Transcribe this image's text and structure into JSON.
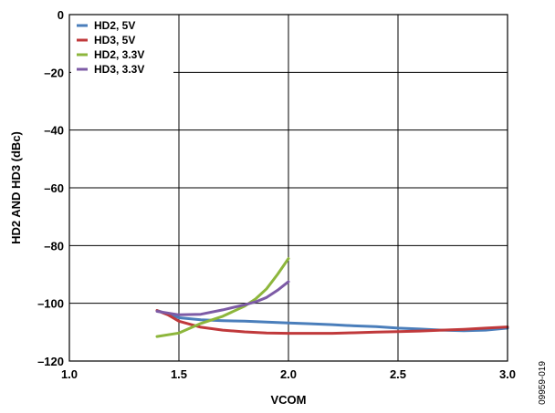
{
  "chart_data": {
    "type": "line",
    "xlabel": "VCOM",
    "ylabel": "HD2 AND HD3 (dBc)",
    "xlim": [
      1.0,
      3.0
    ],
    "ylim": [
      -120,
      0
    ],
    "xticks": [
      1.0,
      1.5,
      2.0,
      2.5,
      3.0
    ],
    "xtick_labels": [
      "1.0",
      "1.5",
      "2.0",
      "2.5",
      "3.0"
    ],
    "yticks": [
      0,
      -20,
      -40,
      -60,
      -80,
      -100,
      -120
    ],
    "ytick_labels": [
      "0",
      "–20",
      "–40",
      "–60",
      "–80",
      "–100",
      "–120"
    ],
    "grid": true,
    "legend_position": "top-left",
    "figure_id": "09959-019",
    "series": [
      {
        "name": "HD2, 5V",
        "color": "#4a7ebb",
        "x": [
          1.4,
          1.5,
          1.6,
          1.7,
          1.8,
          1.9,
          2.0,
          2.1,
          2.2,
          2.3,
          2.4,
          2.5,
          2.6,
          2.7,
          2.8,
          2.9,
          3.0
        ],
        "y": [
          -102.5,
          -105.0,
          -105.7,
          -106.0,
          -106.2,
          -106.5,
          -106.8,
          -107.1,
          -107.4,
          -107.8,
          -108.1,
          -108.6,
          -108.9,
          -109.3,
          -109.5,
          -109.3,
          -108.6
        ]
      },
      {
        "name": "HD3, 5V",
        "color": "#c0393b",
        "x": [
          1.4,
          1.45,
          1.5,
          1.6,
          1.7,
          1.8,
          1.9,
          2.0,
          2.1,
          2.2,
          2.3,
          2.4,
          2.5,
          2.6,
          2.7,
          2.8,
          2.9,
          3.0
        ],
        "y": [
          -102.5,
          -104.0,
          -106.2,
          -108.3,
          -109.3,
          -109.9,
          -110.3,
          -110.4,
          -110.4,
          -110.4,
          -110.2,
          -110.0,
          -109.8,
          -109.6,
          -109.3,
          -109.0,
          -108.6,
          -108.2
        ]
      },
      {
        "name": "HD2, 3.3V",
        "color": "#8db63c",
        "x": [
          1.4,
          1.5,
          1.6,
          1.7,
          1.8,
          1.85,
          1.9,
          1.95,
          2.0
        ],
        "y": [
          -111.5,
          -110.3,
          -107.0,
          -104.5,
          -101.0,
          -98.5,
          -95.0,
          -90.0,
          -84.5
        ]
      },
      {
        "name": "HD3, 3.3V",
        "color": "#7d5ba6",
        "x": [
          1.4,
          1.5,
          1.6,
          1.7,
          1.8,
          1.85,
          1.9,
          1.95,
          2.0
        ],
        "y": [
          -102.8,
          -104.0,
          -103.8,
          -102.3,
          -100.5,
          -99.5,
          -98.0,
          -95.5,
          -92.5
        ]
      }
    ]
  }
}
